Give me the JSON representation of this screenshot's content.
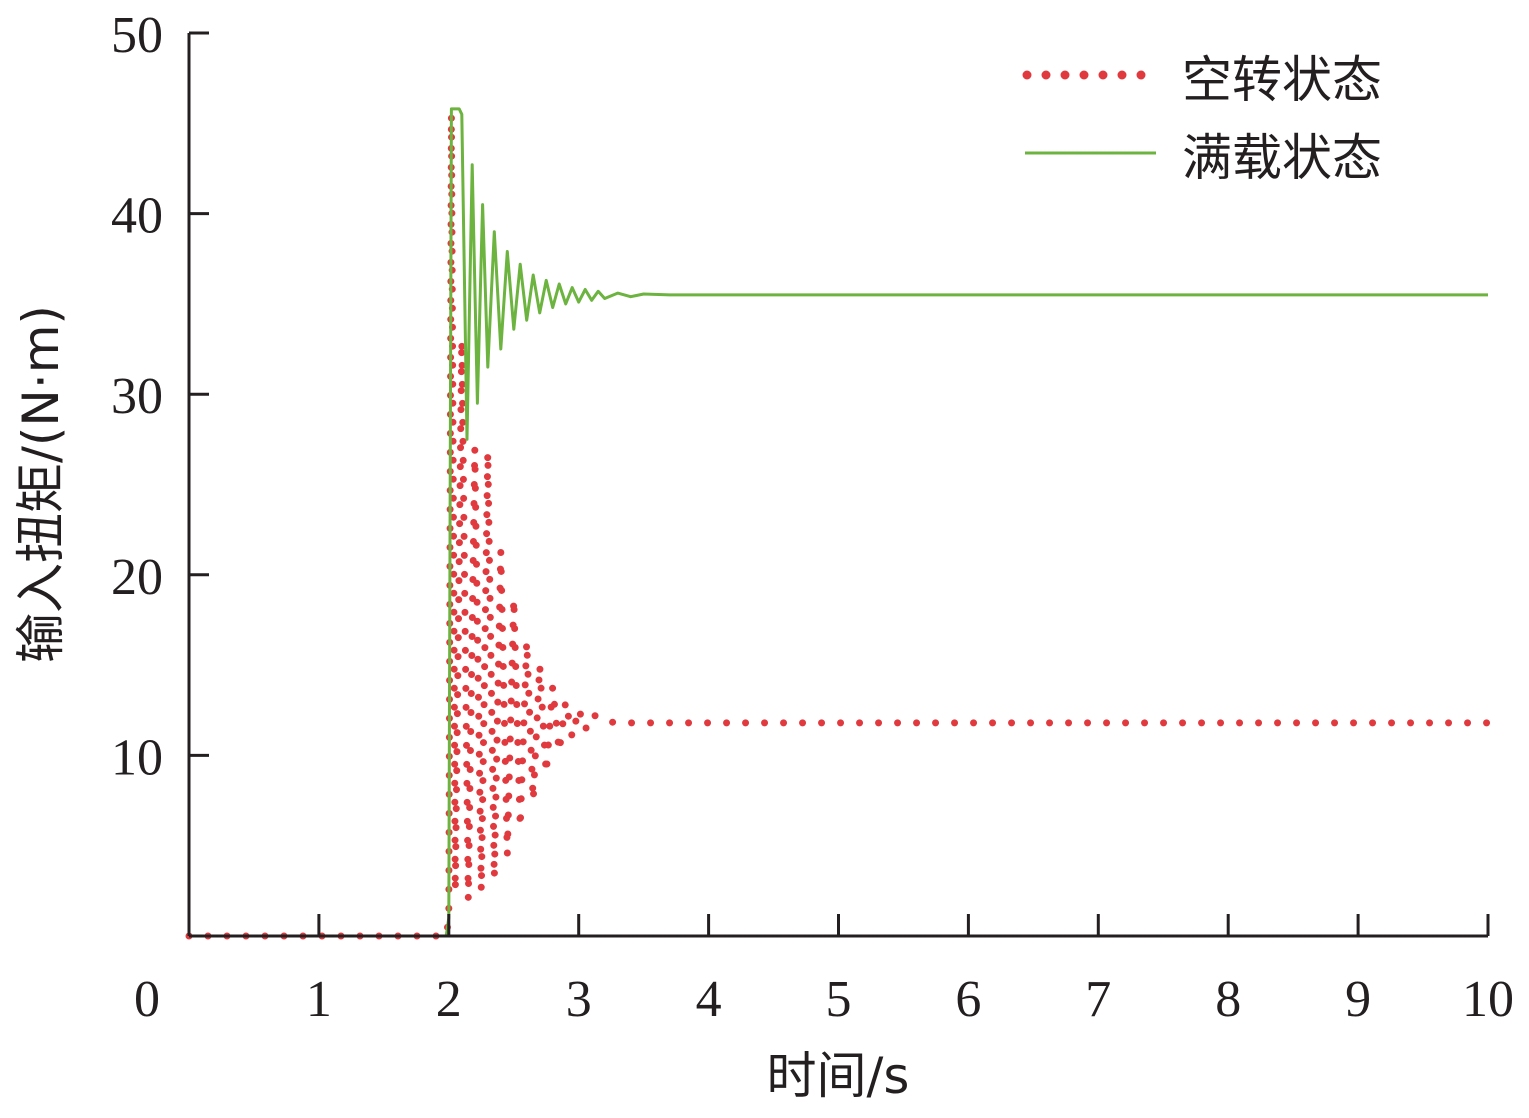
{
  "chart_data": {
    "type": "line",
    "title": "",
    "xlabel": "时间/s",
    "ylabel": "输入扭矩/(N·m)",
    "xlim": [
      0,
      10
    ],
    "ylim": [
      0,
      50
    ],
    "xticks": [
      "0",
      "1",
      "2",
      "3",
      "4",
      "5",
      "6",
      "7",
      "8",
      "9",
      "10"
    ],
    "yticks": [
      "10",
      "20",
      "30",
      "40",
      "50"
    ],
    "grid": false,
    "legend_position": "top-right",
    "colors": {
      "idle": "#e0393e",
      "full": "#6cb33f",
      "axis": "#231f20"
    },
    "series": [
      {
        "name": "空转状态",
        "style": "dotted",
        "x": [
          0,
          1.98,
          2.0,
          2.02,
          2.05,
          2.1,
          2.15,
          2.2,
          2.25,
          2.3,
          2.35,
          2.4,
          2.45,
          2.5,
          2.55,
          2.6,
          2.65,
          2.7,
          2.75,
          2.8,
          2.85,
          2.9,
          2.95,
          3.0,
          3.05,
          3.1,
          3.2,
          3.3,
          4.0,
          6.0,
          8.0,
          10.0
        ],
        "values": [
          0,
          0,
          1,
          45.5,
          2.5,
          33,
          2.0,
          27,
          2.5,
          26.8,
          3.2,
          21.3,
          4.5,
          18.7,
          6.0,
          16.3,
          7.5,
          15.0,
          9.0,
          13.8,
          10.2,
          13.0,
          11.0,
          12.6,
          11.4,
          12.3,
          11.9,
          11.8,
          11.8,
          11.8,
          11.8,
          11.8
        ]
      },
      {
        "name": "满载状态",
        "style": "solid",
        "x": [
          0,
          1.98,
          2.0,
          2.02,
          2.08,
          2.1,
          2.14,
          2.18,
          2.22,
          2.26,
          2.3,
          2.35,
          2.4,
          2.45,
          2.5,
          2.55,
          2.6,
          2.65,
          2.7,
          2.75,
          2.8,
          2.85,
          2.9,
          2.95,
          3.0,
          3.05,
          3.1,
          3.15,
          3.2,
          3.3,
          3.4,
          3.5,
          3.7,
          3.9,
          6.0,
          10.0
        ],
        "values": [
          0,
          0,
          1,
          45.8,
          45.8,
          45.5,
          27.5,
          42.7,
          29.5,
          40.5,
          31.5,
          39.0,
          32.5,
          37.9,
          33.6,
          37.2,
          34.1,
          36.6,
          34.5,
          36.3,
          34.8,
          36.1,
          35.0,
          35.9,
          35.1,
          35.8,
          35.2,
          35.7,
          35.3,
          35.6,
          35.4,
          35.55,
          35.5,
          35.5,
          35.5,
          35.5
        ]
      }
    ]
  }
}
